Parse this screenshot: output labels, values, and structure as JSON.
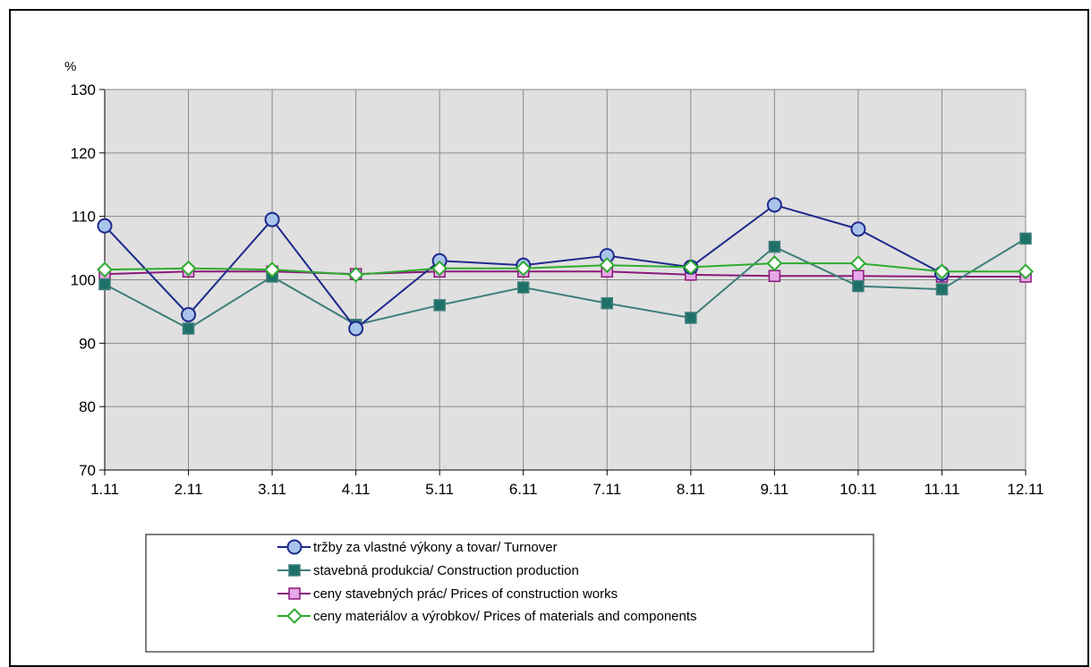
{
  "chart_data": {
    "type": "line",
    "y_unit": "%",
    "categories": [
      "1.11",
      "2.11",
      "3.11",
      "4.11",
      "5.11",
      "6.11",
      "7.11",
      "8.11",
      "9.11",
      "10.11",
      "11.11",
      "12.11"
    ],
    "ylim": [
      70,
      130
    ],
    "yticks": [
      70,
      80,
      90,
      100,
      110,
      120,
      130
    ],
    "grid": true,
    "legend_position": "bottom",
    "series": [
      {
        "name": "tržby za vlastné výkony a tovar/ Turnover",
        "marker": "circle",
        "color": "#1f2a8c",
        "fill": "#a9c4ec",
        "values": [
          108.5,
          94.5,
          109.5,
          92.3,
          103.0,
          102.3,
          103.8,
          102.0,
          111.8,
          108.0,
          101.0,
          null
        ]
      },
      {
        "name": "stavebná produkcia/ Construction production",
        "marker": "square",
        "color": "#3f7f7a",
        "fill": "#1e7169",
        "values": [
          99.3,
          92.3,
          100.5,
          92.9,
          96.0,
          98.8,
          96.3,
          94.0,
          105.2,
          99.0,
          98.5,
          106.5
        ]
      },
      {
        "name": "ceny stavebných prác/ Prices of construction works",
        "marker": "square",
        "color": "#8a1a7a",
        "fill": "#e6a8e8",
        "values": [
          100.9,
          101.3,
          101.3,
          100.9,
          101.3,
          101.3,
          101.3,
          100.8,
          100.6,
          100.6,
          100.5,
          100.5
        ]
      },
      {
        "name": "ceny materiálov a výrobkov/ Prices of materials and components",
        "marker": "diamond",
        "color": "#2eac2e",
        "fill": "#ffffff",
        "values": [
          101.6,
          101.8,
          101.6,
          100.8,
          101.8,
          101.8,
          102.3,
          102.0,
          102.6,
          102.6,
          101.3,
          101.3
        ]
      }
    ]
  }
}
